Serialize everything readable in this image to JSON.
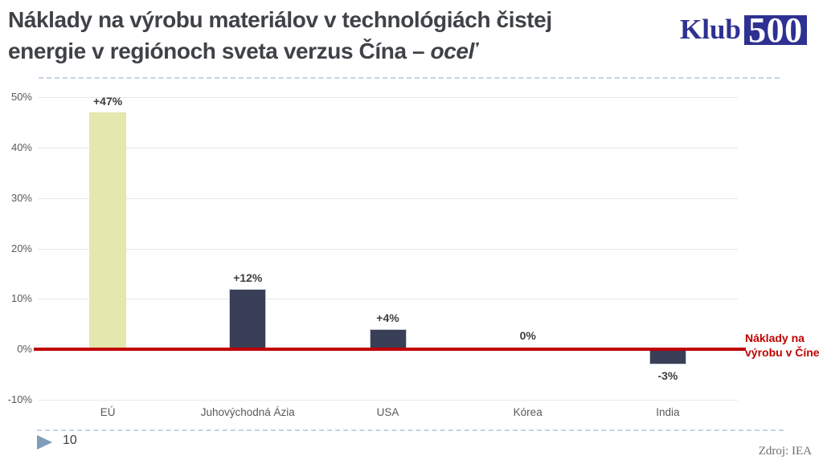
{
  "title": {
    "line1": "Náklady na výrobu materiálov v technológiách čistej",
    "line2_text": "energie v regiónoch sveta verzus Čína – ",
    "line2_emphasis": "oceľ"
  },
  "logo": {
    "word": "Klub",
    "number": "500"
  },
  "chart_data": {
    "type": "bar",
    "title": "Náklady na výrobu materiálov v technológiách čistej energie v regiónoch sveta verzus Čína – oceľ",
    "categories": [
      "EÚ",
      "Juhovýchodná Ázia",
      "USA",
      "Kórea",
      "India"
    ],
    "values": [
      47,
      12,
      4,
      0,
      -3
    ],
    "value_labels": [
      "+47%",
      "+12%",
      "+4%",
      "0%",
      "-3%"
    ],
    "bar_colors": [
      "#e4e7ae",
      "#3a3f58",
      "#3a3f58",
      "#3a3f58",
      "#3a3f58"
    ],
    "xlabel": "",
    "ylabel": "",
    "ylim": [
      -10,
      50
    ],
    "yticks": [
      {
        "value": 50,
        "label": "50%"
      },
      {
        "value": 40,
        "label": "40%"
      },
      {
        "value": 30,
        "label": "30%"
      },
      {
        "value": 20,
        "label": "20%"
      },
      {
        "value": 10,
        "label": "10%"
      },
      {
        "value": 0,
        "label": "0%"
      },
      {
        "value": -10,
        "label": "-10%"
      }
    ],
    "grid": true,
    "legend": "none",
    "baseline": {
      "value": 0,
      "color": "#c00000",
      "label": "Náklady na výrobu v Číne"
    }
  },
  "baseline_label": {
    "line1": "Náklady na",
    "line2": "výrobu v Číne"
  },
  "footer": {
    "slide_number": "10",
    "source": "Zdroj: IEA"
  },
  "colors": {
    "accent_red": "#c00000",
    "navy_bar": "#3a3f58",
    "highlight_bar": "#e4e7ae",
    "logo_navy": "#2e3192",
    "title_text": "#3f4247"
  }
}
